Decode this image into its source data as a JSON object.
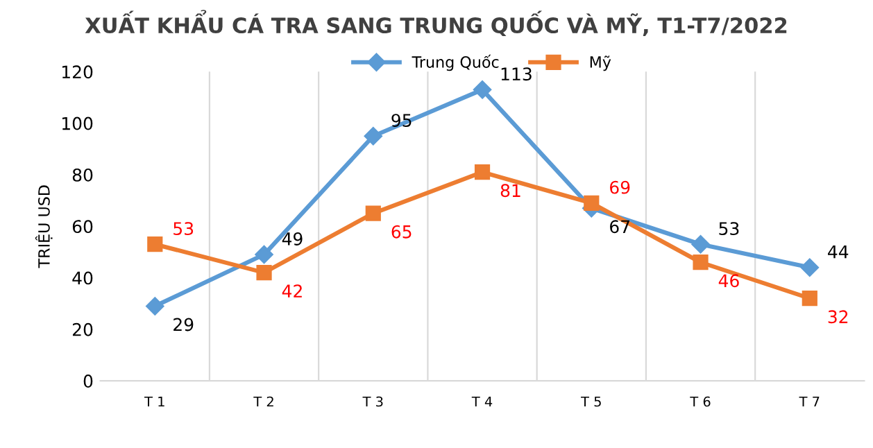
{
  "chart_data": {
    "type": "line",
    "title": "XUẤT KHẨU CÁ TRA SANG TRUNG QUỐC VÀ MỸ, T1-T7/2022",
    "ylabel": "TRIỆU USD",
    "categories": [
      "T 1",
      "T 2",
      "T 3",
      "T 4",
      "T 5",
      "T 6",
      "T 7"
    ],
    "series": [
      {
        "name": "Trung Quốc",
        "color": "#5b9bd5",
        "marker": "diamond",
        "values": [
          29,
          49,
          95,
          113,
          67,
          53,
          44
        ]
      },
      {
        "name": "Mỹ",
        "color": "#ed7d31",
        "marker": "square",
        "values": [
          53,
          42,
          65,
          81,
          69,
          46,
          32
        ]
      }
    ],
    "ylim": [
      0,
      120
    ],
    "yticks": [
      0,
      20,
      40,
      60,
      80,
      100,
      120
    ],
    "grid": "x",
    "legend": "top",
    "data_labels": true
  }
}
